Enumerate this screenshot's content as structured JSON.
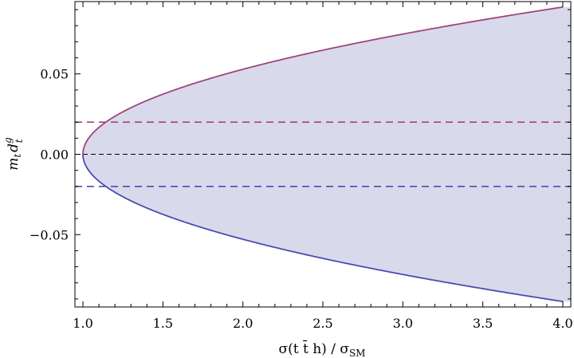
{
  "chart_data": {
    "type": "area",
    "xlabel": "σ(t t̄ h) / σ",
    "xlabel_sub": "SM",
    "ylabel": "m",
    "ylabel_sub": "t",
    "ylabel_d": "d",
    "ylabel_d_sup": "g",
    "ylabel_d_sub": "t",
    "xlim": [
      0.95,
      4.05
    ],
    "ylim": [
      -0.095,
      0.095
    ],
    "x_ticks": [
      {
        "value": 1.0,
        "label": "1.0"
      },
      {
        "value": 1.5,
        "label": "1.5"
      },
      {
        "value": 2.0,
        "label": "2.0"
      },
      {
        "value": 2.5,
        "label": "2.5"
      },
      {
        "value": 3.0,
        "label": "3.0"
      },
      {
        "value": 3.5,
        "label": "3.5"
      },
      {
        "value": 4.0,
        "label": "4.0"
      }
    ],
    "y_ticks": [
      {
        "value": -0.05,
        "label": "−0.05"
      },
      {
        "value": 0.0,
        "label": "0.00"
      },
      {
        "value": 0.05,
        "label": "0.05"
      }
    ],
    "series": [
      {
        "color": "#a0457c",
        "x": [
          1.0,
          1.25,
          1.5,
          2.0,
          2.5,
          3.0,
          3.5,
          4.0
        ],
        "y": [
          0.0,
          0.0236,
          0.0333,
          0.0471,
          0.0577,
          0.0667,
          0.0745,
          0.0916
        ]
      },
      {
        "color": "#4c4cb0",
        "x": [
          1.0,
          1.25,
          1.5,
          2.0,
          2.5,
          3.0,
          3.5,
          4.0
        ],
        "y": [
          0.0,
          -0.0236,
          -0.0333,
          -0.0471,
          -0.0577,
          -0.0667,
          -0.0745,
          -0.0916
        ]
      }
    ],
    "horizontal_lines": [
      {
        "y": 0.02,
        "color": "#a0457c",
        "style": "dashed"
      },
      {
        "y": 0.0,
        "color": "#000000",
        "style": "dashed"
      },
      {
        "y": -0.02,
        "color": "#4c4cb0",
        "style": "dashed"
      }
    ],
    "fill_color": "#d9d9ec",
    "grid": false
  }
}
